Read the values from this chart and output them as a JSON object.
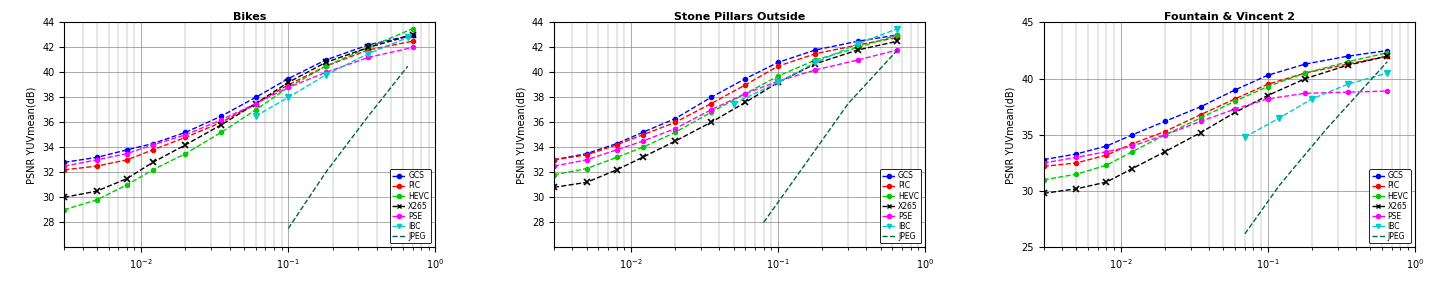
{
  "subplots": [
    {
      "title": "Bikes",
      "ylabel": "PSNR YUVmean(dB)",
      "ylim": [
        26,
        44
      ],
      "yticks": [
        28,
        30,
        32,
        34,
        36,
        38,
        40,
        42,
        44
      ],
      "series": {
        "GCS": {
          "x": [
            0.003,
            0.005,
            0.008,
            0.012,
            0.02,
            0.035,
            0.06,
            0.1,
            0.18,
            0.35,
            0.7
          ],
          "y": [
            32.8,
            33.2,
            33.8,
            34.3,
            35.2,
            36.5,
            38.0,
            39.5,
            41.0,
            42.2,
            43.0
          ],
          "color": "#0000FF",
          "marker": "o",
          "linestyle": "--"
        },
        "PIC": {
          "x": [
            0.003,
            0.005,
            0.008,
            0.012,
            0.02,
            0.035,
            0.06,
            0.1,
            0.18,
            0.35,
            0.7
          ],
          "y": [
            32.2,
            32.5,
            33.0,
            33.8,
            34.8,
            36.0,
            37.5,
            39.0,
            40.5,
            41.8,
            42.5
          ],
          "color": "#FF0000",
          "marker": "o",
          "linestyle": "--"
        },
        "HEVC": {
          "x": [
            0.003,
            0.005,
            0.008,
            0.012,
            0.02,
            0.035,
            0.06,
            0.1,
            0.18,
            0.35,
            0.7
          ],
          "y": [
            29.0,
            29.8,
            31.0,
            32.2,
            33.5,
            35.2,
            37.0,
            38.8,
            40.5,
            42.0,
            43.5
          ],
          "color": "#00CC00",
          "marker": "o",
          "linestyle": "--"
        },
        "X265": {
          "x": [
            0.003,
            0.005,
            0.008,
            0.012,
            0.02,
            0.035,
            0.06,
            0.1,
            0.18,
            0.35,
            0.7
          ],
          "y": [
            30.0,
            30.5,
            31.5,
            32.8,
            34.2,
            35.8,
            37.5,
            39.2,
            40.8,
            42.0,
            43.0
          ],
          "color": "#000000",
          "marker": "x",
          "linestyle": "--"
        },
        "PSE": {
          "x": [
            0.003,
            0.005,
            0.008,
            0.012,
            0.02,
            0.035,
            0.06,
            0.1,
            0.18,
            0.35,
            0.7
          ],
          "y": [
            32.5,
            33.0,
            33.5,
            34.2,
            35.0,
            36.2,
            37.5,
            38.8,
            40.0,
            41.2,
            42.0
          ],
          "color": "#FF00FF",
          "marker": "o",
          "linestyle": "--"
        },
        "IBC": {
          "x": [
            0.06,
            0.1,
            0.18,
            0.35,
            0.65
          ],
          "y": [
            36.5,
            38.0,
            39.8,
            41.5,
            42.8
          ],
          "color": "#00CCCC",
          "marker": "v",
          "linestyle": "--"
        },
        "JPEG": {
          "x": [
            0.1,
            0.18,
            0.35,
            0.65
          ],
          "y": [
            27.5,
            32.0,
            36.5,
            40.5
          ],
          "color": "#006644",
          "marker": null,
          "linestyle": "--"
        }
      }
    },
    {
      "title": "Stone Pillars Outside",
      "ylabel": "PSNR YUVmean(dB)",
      "ylim": [
        26,
        44
      ],
      "yticks": [
        28,
        30,
        32,
        34,
        36,
        38,
        40,
        42,
        44
      ],
      "series": {
        "GCS": {
          "x": [
            0.003,
            0.005,
            0.008,
            0.012,
            0.02,
            0.035,
            0.06,
            0.1,
            0.18,
            0.35,
            0.65
          ],
          "y": [
            33.0,
            33.5,
            34.3,
            35.2,
            36.3,
            38.0,
            39.5,
            40.8,
            41.8,
            42.5,
            43.0
          ],
          "color": "#0000FF",
          "marker": "o",
          "linestyle": "--"
        },
        "PIC": {
          "x": [
            0.003,
            0.005,
            0.008,
            0.012,
            0.02,
            0.035,
            0.06,
            0.1,
            0.18,
            0.35,
            0.65
          ],
          "y": [
            33.0,
            33.4,
            34.2,
            35.0,
            36.0,
            37.5,
            39.0,
            40.5,
            41.5,
            42.2,
            42.8
          ],
          "color": "#FF0000",
          "marker": "o",
          "linestyle": "--"
        },
        "HEVC": {
          "x": [
            0.003,
            0.005,
            0.008,
            0.012,
            0.02,
            0.035,
            0.06,
            0.1,
            0.18,
            0.35,
            0.65
          ],
          "y": [
            31.8,
            32.3,
            33.2,
            34.0,
            35.2,
            36.8,
            38.3,
            39.7,
            41.0,
            42.0,
            43.0
          ],
          "color": "#00CC00",
          "marker": "o",
          "linestyle": "--"
        },
        "X265": {
          "x": [
            0.003,
            0.005,
            0.008,
            0.012,
            0.02,
            0.035,
            0.06,
            0.1,
            0.18,
            0.35,
            0.65
          ],
          "y": [
            30.8,
            31.2,
            32.2,
            33.2,
            34.5,
            36.0,
            37.6,
            39.2,
            40.7,
            41.8,
            42.5
          ],
          "color": "#000000",
          "marker": "x",
          "linestyle": "--"
        },
        "PSE": {
          "x": [
            0.003,
            0.005,
            0.008,
            0.012,
            0.02,
            0.035,
            0.06,
            0.1,
            0.18,
            0.35,
            0.65
          ],
          "y": [
            32.5,
            33.0,
            33.8,
            34.5,
            35.5,
            37.0,
            38.3,
            39.3,
            40.2,
            41.0,
            41.8
          ],
          "color": "#FF00FF",
          "marker": "o",
          "linestyle": "--"
        },
        "IBC": {
          "x": [
            0.05,
            0.1,
            0.18,
            0.35,
            0.65
          ],
          "y": [
            37.5,
            39.2,
            40.8,
            42.3,
            43.5
          ],
          "color": "#00CCCC",
          "marker": "v",
          "linestyle": "--"
        },
        "JPEG": {
          "x": [
            0.08,
            0.15,
            0.3,
            0.65
          ],
          "y": [
            28.0,
            32.5,
            37.5,
            41.8
          ],
          "color": "#006644",
          "marker": null,
          "linestyle": "--"
        }
      }
    },
    {
      "title": "Fountain & Vincent 2",
      "ylabel": "PSNR YUVmean(dB)",
      "ylim": [
        25,
        45
      ],
      "yticks": [
        25,
        30,
        35,
        40,
        45
      ],
      "series": {
        "GCS": {
          "x": [
            0.003,
            0.005,
            0.008,
            0.012,
            0.02,
            0.035,
            0.06,
            0.1,
            0.18,
            0.35,
            0.65
          ],
          "y": [
            32.8,
            33.3,
            34.0,
            35.0,
            36.2,
            37.5,
            39.0,
            40.3,
            41.3,
            42.0,
            42.5
          ],
          "color": "#0000FF",
          "marker": "o",
          "linestyle": "--"
        },
        "PIC": {
          "x": [
            0.003,
            0.005,
            0.008,
            0.012,
            0.02,
            0.035,
            0.06,
            0.1,
            0.18,
            0.35,
            0.65
          ],
          "y": [
            32.2,
            32.5,
            33.2,
            34.2,
            35.3,
            36.8,
            38.2,
            39.5,
            40.5,
            41.3,
            42.0
          ],
          "color": "#FF0000",
          "marker": "o",
          "linestyle": "--"
        },
        "HEVC": {
          "x": [
            0.003,
            0.005,
            0.008,
            0.012,
            0.02,
            0.035,
            0.06,
            0.1,
            0.18,
            0.35,
            0.65
          ],
          "y": [
            31.0,
            31.5,
            32.3,
            33.5,
            35.0,
            36.5,
            38.0,
            39.3,
            40.5,
            41.5,
            42.3
          ],
          "color": "#00CC00",
          "marker": "o",
          "linestyle": "--"
        },
        "X265": {
          "x": [
            0.003,
            0.005,
            0.008,
            0.012,
            0.02,
            0.035,
            0.06,
            0.1,
            0.18,
            0.35,
            0.65
          ],
          "y": [
            29.8,
            30.2,
            30.8,
            32.0,
            33.5,
            35.2,
            37.0,
            38.5,
            40.0,
            41.2,
            42.0
          ],
          "color": "#000000",
          "marker": "x",
          "linestyle": "--"
        },
        "PSE": {
          "x": [
            0.003,
            0.005,
            0.008,
            0.012,
            0.02,
            0.035,
            0.06,
            0.1,
            0.18,
            0.35,
            0.65
          ],
          "y": [
            32.5,
            33.0,
            33.5,
            34.0,
            35.0,
            36.2,
            37.3,
            38.2,
            38.7,
            38.8,
            38.9
          ],
          "color": "#FF00FF",
          "marker": "o",
          "linestyle": "--"
        },
        "IBC": {
          "x": [
            0.07,
            0.12,
            0.2,
            0.35,
            0.65
          ],
          "y": [
            34.8,
            36.5,
            38.2,
            39.5,
            40.5
          ],
          "color": "#00CCCC",
          "marker": "v",
          "linestyle": "--"
        },
        "JPEG": {
          "x": [
            0.07,
            0.12,
            0.25,
            0.65
          ],
          "y": [
            26.2,
            30.5,
            35.5,
            41.5
          ],
          "color": "#006644",
          "marker": null,
          "linestyle": "--"
        }
      }
    }
  ],
  "xlim": [
    0.003,
    1.0
  ],
  "xticks": [
    0.01,
    0.1,
    1.0
  ],
  "xlabel": "",
  "legend_labels": [
    "GCS",
    "PIC",
    "HEVC",
    "X265",
    "PSE",
    "IBC",
    "JPEG"
  ],
  "legend_colors": [
    "#0000FF",
    "#FF0000",
    "#00CC00",
    "#000000",
    "#FF00FF",
    "#00CCCC",
    "#006644"
  ],
  "legend_markers": [
    "o",
    "o",
    "o",
    "x",
    "o",
    "v",
    null
  ],
  "background_color": "#FFFFFF",
  "grid_color": "#888888"
}
